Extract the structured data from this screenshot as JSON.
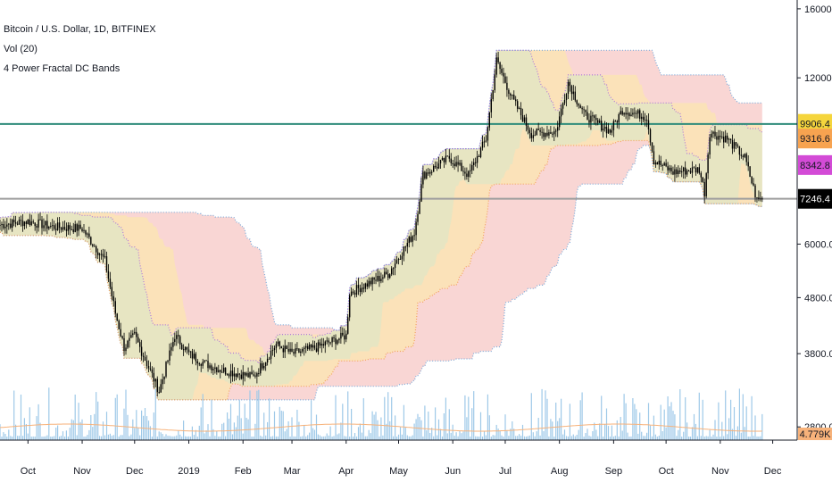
{
  "legend": {
    "symbol": "Bitcoin / U.S. Dollar, 1D, BITFINEX",
    "volume": "Vol (20)",
    "indicator": "4 Power Fractal DC Bands"
  },
  "colors": {
    "candle": "#000000",
    "volume": "#9ec9e8",
    "volume_ma": "#f7b27a",
    "band_red": "#f7c8c6",
    "band_yellow": "#fbe9a6",
    "band_green": "#cfe9cf",
    "line_teal": "#2e8b7a",
    "line_grey": "#9e9e9e",
    "dots_blue": "#7aa9d9",
    "dots_orange": "#f3a35f",
    "dots_purple": "#b07ad9"
  },
  "chart_data": {
    "type": "candlestick",
    "title": "Bitcoin / U.S. Dollar, 1D, BITFINEX",
    "y_scale": "log",
    "ylim": [
      2650,
      16600
    ],
    "y_ticks": [
      "16000.0",
      "12000.0",
      "6000.0",
      "4800.0",
      "3800.0",
      "2800.0"
    ],
    "y_tick_values": [
      16000,
      12000,
      6000,
      4800,
      3800,
      2800
    ],
    "x_ticks": [
      "Oct",
      "Nov",
      "Dec",
      "2019",
      "Feb",
      "Mar",
      "Apr",
      "May",
      "Jun",
      "Jul",
      "Aug",
      "Sep",
      "Oct",
      "Nov",
      "Dec"
    ],
    "x_range": [
      "2018-09-15",
      "2019-12-15"
    ],
    "x_tick_dates": [
      "2018-10-01",
      "2018-11-01",
      "2018-12-01",
      "2019-01-01",
      "2019-02-01",
      "2019-03-01",
      "2019-04-01",
      "2019-05-01",
      "2019-06-01",
      "2019-07-01",
      "2019-08-01",
      "2019-09-01",
      "2019-10-01",
      "2019-11-01",
      "2019-12-01"
    ],
    "close_anchors": [
      [
        "2018-09-15",
        6500
      ],
      [
        "2018-10-01",
        6600
      ],
      [
        "2018-10-15",
        6450
      ],
      [
        "2018-11-01",
        6400
      ],
      [
        "2018-11-14",
        5600
      ],
      [
        "2018-11-20",
        4500
      ],
      [
        "2018-11-25",
        3900
      ],
      [
        "2018-12-01",
        4100
      ],
      [
        "2018-12-15",
        3250
      ],
      [
        "2018-12-24",
        4100
      ],
      [
        "2019-01-01",
        3800
      ],
      [
        "2019-01-10",
        3650
      ],
      [
        "2019-01-20",
        3550
      ],
      [
        "2019-02-07",
        3450
      ],
      [
        "2019-02-20",
        3950
      ],
      [
        "2019-03-01",
        3800
      ],
      [
        "2019-03-15",
        3900
      ],
      [
        "2019-04-01",
        4100
      ],
      [
        "2019-04-03",
        4900
      ],
      [
        "2019-04-25",
        5300
      ],
      [
        "2019-05-10",
        6300
      ],
      [
        "2019-05-15",
        8000
      ],
      [
        "2019-05-30",
        8600
      ],
      [
        "2019-06-10",
        8000
      ],
      [
        "2019-06-20",
        9300
      ],
      [
        "2019-06-26",
        12900
      ],
      [
        "2019-07-05",
        11000
      ],
      [
        "2019-07-16",
        9500
      ],
      [
        "2019-07-30",
        9600
      ],
      [
        "2019-08-06",
        11800
      ],
      [
        "2019-08-15",
        10300
      ],
      [
        "2019-08-30",
        9600
      ],
      [
        "2019-09-06",
        10500
      ],
      [
        "2019-09-20",
        10200
      ],
      [
        "2019-09-24",
        8500
      ],
      [
        "2019-10-05",
        8100
      ],
      [
        "2019-10-20",
        8200
      ],
      [
        "2019-10-23",
        7450
      ],
      [
        "2019-10-26",
        9550
      ],
      [
        "2019-11-05",
        9300
      ],
      [
        "2019-11-15",
        8600
      ],
      [
        "2019-11-22",
        7200
      ],
      [
        "2019-11-25",
        7246.4
      ]
    ],
    "last_price": "7246.4",
    "price_badges": [
      {
        "label": "9906.4",
        "value": 9906.4,
        "color": "#f5d53c"
      },
      {
        "label": "9316.6",
        "value": 9316.6,
        "color": "#f7a350"
      },
      {
        "label": "8342.8",
        "value": 8342.8,
        "color": "#d34bd6"
      },
      {
        "label": "7246.4",
        "value": 7246.4,
        "color": "#000000"
      }
    ],
    "volume_badge": "4.779K",
    "horizontal_lines": [
      {
        "value": 9900,
        "color": "#2e8b7a"
      },
      {
        "value": 7250,
        "color": "#9e9e9e"
      }
    ]
  }
}
